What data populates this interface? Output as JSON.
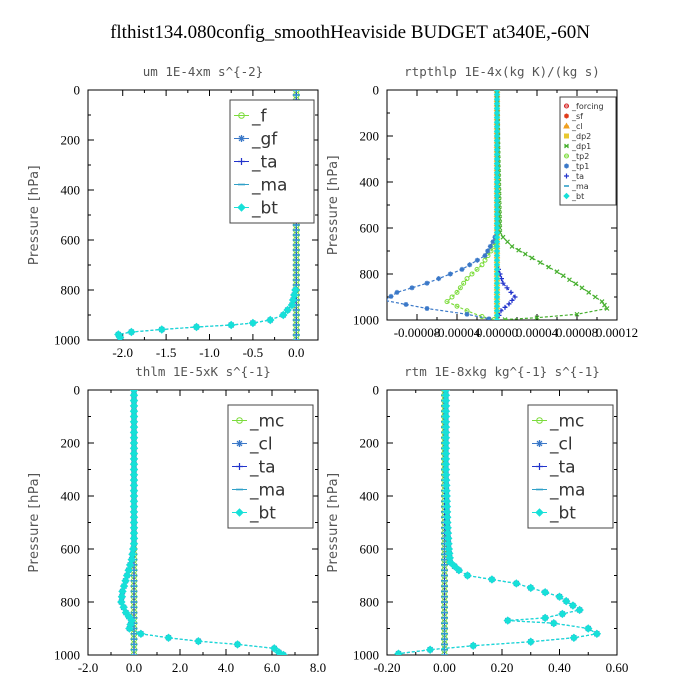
{
  "title": "flthist134.080config_smoothHeaviside  BUDGET at340E,-60N",
  "chart_data": [
    {
      "type": "line",
      "title": "um  1E-4xm s^{-2}",
      "ylabel": "Pressure [hPa]",
      "xlim": [
        -2.4,
        0.25
      ],
      "ylim": [
        1000,
        0
      ],
      "xticks": [
        -2.0,
        -1.5,
        -1.0,
        -0.5,
        0.0
      ],
      "xtick_labels": [
        "-2.0",
        "-1.5",
        "-1.0",
        "-0.5",
        "0.0"
      ],
      "yticks": [
        0,
        200,
        400,
        600,
        800,
        1000
      ],
      "legend_position": "top-right",
      "series": [
        {
          "name": "_f",
          "color": "#7cdc3c",
          "marker": "circle",
          "points": [
            [
              0,
              0
            ],
            [
              0,
              1000
            ]
          ]
        },
        {
          "name": "_gf",
          "color": "#3a78c8",
          "marker": "star",
          "points": [
            [
              -0.01,
              800
            ],
            [
              -0.05,
              860
            ],
            [
              -0.15,
              900
            ],
            [
              -0.3,
              920
            ],
            [
              -0.5,
              932
            ],
            [
              -0.75,
              940
            ],
            [
              -1.15,
              948
            ],
            [
              -1.55,
              958
            ],
            [
              -1.9,
              968
            ],
            [
              -2.05,
              978
            ],
            [
              -2.03,
              990
            ]
          ]
        },
        {
          "name": "_ta",
          "color": "#2233cc",
          "marker": "plus",
          "points": [
            [
              0,
              0
            ],
            [
              0,
              1000
            ]
          ]
        },
        {
          "name": "_ma",
          "color": "#30a0c8",
          "marker": "dash",
          "points": [
            [
              0,
              0
            ],
            [
              0,
              1000
            ]
          ]
        },
        {
          "name": "_bt",
          "color": "#17e0d8",
          "marker": "diamond",
          "points": [
            [
              -0.01,
              800
            ],
            [
              -0.05,
              860
            ],
            [
              -0.15,
              900
            ],
            [
              -0.3,
              920
            ],
            [
              -0.5,
              932
            ],
            [
              -0.75,
              940
            ],
            [
              -1.15,
              948
            ],
            [
              -1.55,
              958
            ],
            [
              -1.9,
              968
            ],
            [
              -2.05,
              978
            ],
            [
              -2.03,
              990
            ]
          ]
        }
      ]
    },
    {
      "type": "line",
      "title": "rtpthlp  1E-4x(kg K)/(kg s)",
      "ylabel": "Pressure [hPa]",
      "xlim": [
        -0.00011,
        0.00012
      ],
      "ylim": [
        1000,
        0
      ],
      "xticks": [
        -8e-05,
        -4e-05,
        0.0,
        4e-05,
        8e-05,
        0.00012
      ],
      "xtick_labels": [
        "-0.00008",
        "-0.00004",
        "0.00000",
        "0.00004",
        "0.00008",
        "0.00012"
      ],
      "yticks": [
        0,
        200,
        400,
        600,
        800,
        1000
      ],
      "legend_position": "top-right",
      "series": [
        {
          "name": "_forcing",
          "color": "#d42020",
          "marker": "circle",
          "points": [
            [
              0,
              0
            ],
            [
              0,
              1000
            ]
          ]
        },
        {
          "name": "_sf",
          "color": "#e03a1a",
          "marker": "star",
          "points": [
            [
              0,
              0
            ],
            [
              0,
              1000
            ]
          ]
        },
        {
          "name": "_cl",
          "color": "#f0a020",
          "marker": "triangle",
          "points": [
            [
              0,
              0
            ],
            [
              0,
              1000
            ]
          ]
        },
        {
          "name": "_dp2",
          "color": "#e8c830",
          "marker": "square",
          "points": [
            [
              0,
              0
            ],
            [
              0,
              1000
            ]
          ]
        },
        {
          "name": "_dp1",
          "color": "#48b030",
          "marker": "cross",
          "points": [
            [
              0,
              0
            ],
            [
              3e-06,
              620
            ],
            [
              6e-06,
              640
            ],
            [
              1.5e-05,
              680
            ],
            [
              3.5e-05,
              730
            ],
            [
              6e-05,
              790
            ],
            [
              8.5e-05,
              860
            ],
            [
              0.000105,
              920
            ],
            [
              0.00011,
              950
            ],
            [
              8e-05,
              975
            ],
            [
              4e-05,
              990
            ],
            [
              8e-06,
              998
            ]
          ]
        },
        {
          "name": "_tp2",
          "color": "#7cdc3c",
          "marker": "circle",
          "points": [
            [
              0,
              0
            ],
            [
              0,
              660
            ],
            [
              -6e-06,
              700
            ],
            [
              -1.5e-05,
              760
            ],
            [
              -3e-05,
              820
            ],
            [
              -4e-05,
              880
            ],
            [
              -5e-05,
              920
            ],
            [
              -3e-05,
              960
            ],
            [
              -1.5e-05,
              985
            ],
            [
              -3e-06,
              998
            ]
          ]
        },
        {
          "name": "_tp1",
          "color": "#3a78c8",
          "marker": "star",
          "points": [
            [
              0,
              0
            ],
            [
              0,
              620
            ],
            [
              -4e-06,
              660
            ],
            [
              -1.2e-05,
              720
            ],
            [
              -3.5e-05,
              780
            ],
            [
              -7e-05,
              840
            ],
            [
              -0.0001,
              880
            ],
            [
              -0.000112,
              915
            ],
            [
              -7e-05,
              950
            ],
            [
              -3e-05,
              975
            ],
            [
              -8e-06,
              995
            ]
          ]
        },
        {
          "name": "_ta",
          "color": "#2233cc",
          "marker": "plus",
          "points": [
            [
              0,
              0
            ],
            [
              0,
              760
            ],
            [
              6e-06,
              840
            ],
            [
              1.8e-05,
              900
            ],
            [
              1.2e-05,
              930
            ],
            [
              4e-06,
              960
            ],
            [
              0,
              1000
            ]
          ]
        },
        {
          "name": "_ma",
          "color": "#30a0c8",
          "marker": "dash",
          "points": [
            [
              0,
              0
            ],
            [
              0,
              1000
            ]
          ]
        },
        {
          "name": "_bt",
          "color": "#17e0d8",
          "marker": "diamond",
          "points": [
            [
              0,
              0
            ],
            [
              0,
              1000
            ]
          ]
        }
      ]
    },
    {
      "type": "line",
      "title": "thlm  1E-5xK s^{-1}",
      "ylabel": "Pressure [hPa]",
      "xlim": [
        -2.0,
        8.0
      ],
      "ylim": [
        1000,
        0
      ],
      "xticks": [
        -2.0,
        0.0,
        2.0,
        4.0,
        6.0,
        8.0
      ],
      "xtick_labels": [
        "-2.0",
        "0.0",
        "2.0",
        "4.0",
        "6.0",
        "8.0"
      ],
      "yticks": [
        0,
        200,
        400,
        600,
        800,
        1000
      ],
      "legend_position": "top-right",
      "series": [
        {
          "name": "_mc",
          "color": "#7cdc3c",
          "marker": "circle",
          "points": [
            [
              0,
              0
            ],
            [
              0,
              1000
            ]
          ]
        },
        {
          "name": "_cl",
          "color": "#3a78c8",
          "marker": "star",
          "points": [
            [
              0,
              0
            ],
            [
              0,
              580
            ],
            [
              -0.1,
              640
            ],
            [
              -0.3,
              700
            ],
            [
              -0.5,
              760
            ],
            [
              -0.55,
              800
            ],
            [
              -0.35,
              840
            ],
            [
              -0.1,
              870
            ],
            [
              -0.2,
              900
            ],
            [
              0.3,
              920
            ],
            [
              1.5,
              935
            ],
            [
              2.8,
              948
            ],
            [
              4.5,
              960
            ],
            [
              6.1,
              975
            ],
            [
              6.3,
              990
            ],
            [
              6.5,
              1000
            ]
          ]
        },
        {
          "name": "_ta",
          "color": "#2233cc",
          "marker": "plus",
          "points": [
            [
              0,
              0
            ],
            [
              0,
              1000
            ]
          ]
        },
        {
          "name": "_ma",
          "color": "#30a0c8",
          "marker": "dash",
          "points": [
            [
              0,
              0
            ],
            [
              0,
              1000
            ]
          ]
        },
        {
          "name": "_bt",
          "color": "#17e0d8",
          "marker": "diamond",
          "points": [
            [
              0,
              0
            ],
            [
              0,
              580
            ],
            [
              -0.1,
              640
            ],
            [
              -0.3,
              700
            ],
            [
              -0.5,
              760
            ],
            [
              -0.55,
              800
            ],
            [
              -0.35,
              840
            ],
            [
              -0.1,
              870
            ],
            [
              -0.2,
              900
            ],
            [
              0.3,
              920
            ],
            [
              1.5,
              935
            ],
            [
              2.8,
              948
            ],
            [
              4.5,
              960
            ],
            [
              6.1,
              975
            ],
            [
              6.3,
              990
            ],
            [
              6.5,
              1000
            ]
          ]
        }
      ]
    },
    {
      "type": "line",
      "title": "rtm  1E-8xkg kg^{-1} s^{-1}",
      "ylabel": "Pressure [hPa]",
      "xlim": [
        -0.2,
        0.6
      ],
      "ylim": [
        1000,
        0
      ],
      "xticks": [
        -0.2,
        0.0,
        0.2,
        0.4,
        0.6
      ],
      "xtick_labels": [
        "-0.20",
        "0.00",
        "0.20",
        "0.40",
        "0.60"
      ],
      "yticks": [
        0,
        200,
        400,
        600,
        800,
        1000
      ],
      "legend_position": "top-right",
      "series": [
        {
          "name": "_mc",
          "color": "#7cdc3c",
          "marker": "circle",
          "points": [
            [
              0,
              0
            ],
            [
              0,
              1000
            ]
          ]
        },
        {
          "name": "_cl",
          "color": "#3a78c8",
          "marker": "star",
          "points": [
            [
              0.005,
              0
            ],
            [
              0.005,
              300
            ],
            [
              0.01,
              500
            ],
            [
              0.015,
              600
            ],
            [
              0.02,
              650
            ],
            [
              0.05,
              680
            ],
            [
              0.08,
              700
            ],
            [
              0.25,
              730
            ],
            [
              0.4,
              780
            ],
            [
              0.47,
              830
            ],
            [
              0.35,
              860
            ],
            [
              0.22,
              870
            ],
            [
              0.38,
              880
            ],
            [
              0.5,
              900
            ],
            [
              0.53,
              920
            ],
            [
              0.45,
              935
            ],
            [
              0.3,
              950
            ],
            [
              0.1,
              965
            ],
            [
              -0.05,
              980
            ],
            [
              -0.16,
              995
            ]
          ]
        },
        {
          "name": "_ta",
          "color": "#2233cc",
          "marker": "plus",
          "points": [
            [
              0,
              0
            ],
            [
              0,
              1000
            ]
          ]
        },
        {
          "name": "_ma",
          "color": "#30a0c8",
          "marker": "dash",
          "points": [
            [
              0,
              0
            ],
            [
              0,
              1000
            ]
          ]
        },
        {
          "name": "_bt",
          "color": "#17e0d8",
          "marker": "diamond",
          "points": [
            [
              0.005,
              0
            ],
            [
              0.005,
              300
            ],
            [
              0.01,
              500
            ],
            [
              0.015,
              600
            ],
            [
              0.02,
              650
            ],
            [
              0.05,
              680
            ],
            [
              0.08,
              700
            ],
            [
              0.25,
              730
            ],
            [
              0.4,
              780
            ],
            [
              0.47,
              830
            ],
            [
              0.35,
              860
            ],
            [
              0.22,
              870
            ],
            [
              0.38,
              880
            ],
            [
              0.5,
              900
            ],
            [
              0.53,
              920
            ],
            [
              0.45,
              935
            ],
            [
              0.3,
              950
            ],
            [
              0.1,
              965
            ],
            [
              -0.05,
              980
            ],
            [
              -0.16,
              995
            ]
          ]
        }
      ]
    }
  ]
}
